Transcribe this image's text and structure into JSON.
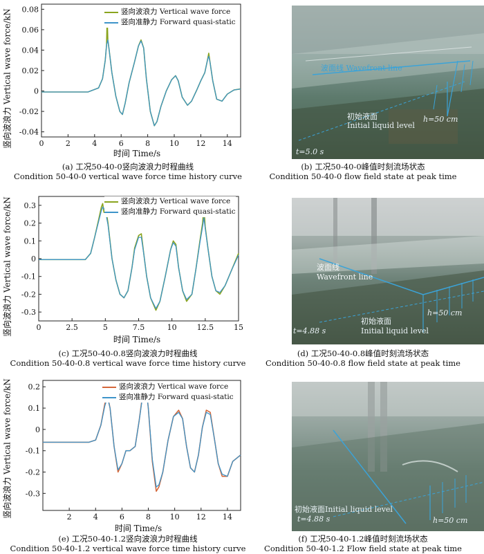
{
  "chart_data": [
    {
      "type": "line",
      "id": "a",
      "xlabel": "时间 Time/s",
      "ylabel": "竖向波浪力 Vertical wave force/kN",
      "xlim": [
        0,
        15
      ],
      "ylim": [
        -0.045,
        0.085
      ],
      "xticks": [
        0,
        2,
        4,
        6,
        8,
        10,
        12,
        14
      ],
      "yticks": [
        -0.04,
        -0.02,
        0,
        0.02,
        0.04,
        0.06,
        0.08
      ],
      "ytick_labels": [
        "-0.04",
        "-0.02",
        "0",
        "0.02",
        "0.04",
        "0.06",
        "0.08"
      ],
      "legend_position": "top-center",
      "series": [
        {
          "name": "竖向波浪力 Vertical wave force",
          "color": "#8aa41e",
          "x": [
            0,
            3.5,
            4.3,
            4.6,
            4.8,
            4.9,
            4.95,
            5.0,
            5.1,
            5.3,
            5.6,
            5.9,
            6.1,
            6.3,
            6.6,
            7.0,
            7.3,
            7.5,
            7.7,
            7.9,
            8.2,
            8.5,
            8.7,
            9.0,
            9.4,
            9.8,
            10.1,
            10.3,
            10.6,
            11.0,
            11.3,
            11.7,
            12.0,
            12.3,
            12.5,
            12.6,
            12.7,
            12.9,
            13.2,
            13.6,
            14.0,
            14.5,
            15.0
          ],
          "y": [
            -0.001,
            -0.001,
            0.003,
            0.012,
            0.03,
            0.045,
            0.072,
            0.05,
            0.04,
            0.018,
            -0.005,
            -0.02,
            -0.023,
            -0.012,
            0.008,
            0.028,
            0.044,
            0.05,
            0.042,
            0.012,
            -0.02,
            -0.034,
            -0.03,
            -0.015,
            0.0,
            0.011,
            0.015,
            0.01,
            -0.006,
            -0.014,
            -0.01,
            0.001,
            0.01,
            0.018,
            0.03,
            0.037,
            0.028,
            0.01,
            -0.008,
            -0.01,
            -0.003,
            0.001,
            0.002
          ]
        },
        {
          "name": "竖向准静力 Forward quasi-static",
          "color": "#3d94c9",
          "x": [
            0,
            3.5,
            4.3,
            4.6,
            4.8,
            4.9,
            5.0,
            5.1,
            5.3,
            5.6,
            5.9,
            6.1,
            6.3,
            6.6,
            7.0,
            7.3,
            7.5,
            7.7,
            7.9,
            8.2,
            8.5,
            8.7,
            9.0,
            9.4,
            9.8,
            10.1,
            10.3,
            10.6,
            11.0,
            11.3,
            11.7,
            12.0,
            12.3,
            12.5,
            12.6,
            12.7,
            12.9,
            13.2,
            13.6,
            14.0,
            14.5,
            15.0
          ],
          "y": [
            -0.001,
            -0.001,
            0.003,
            0.012,
            0.03,
            0.045,
            0.05,
            0.04,
            0.018,
            -0.005,
            -0.02,
            -0.023,
            -0.012,
            0.008,
            0.028,
            0.044,
            0.049,
            0.042,
            0.012,
            -0.02,
            -0.034,
            -0.03,
            -0.015,
            0.0,
            0.011,
            0.015,
            0.01,
            -0.006,
            -0.014,
            -0.01,
            0.001,
            0.01,
            0.018,
            0.03,
            0.034,
            0.028,
            0.01,
            -0.008,
            -0.01,
            -0.003,
            0.001,
            0.002
          ]
        }
      ]
    },
    {
      "type": "line",
      "id": "c",
      "xlabel": "时间 Time/s",
      "ylabel": "竖向波浪力 Vertical wave force/kN",
      "xlim": [
        0,
        15
      ],
      "ylim": [
        -0.35,
        0.35
      ],
      "xticks": [
        0,
        2.5,
        5,
        7.5,
        10,
        12.5,
        15
      ],
      "yticks": [
        -0.3,
        -0.2,
        -0.1,
        0,
        0.1,
        0.2,
        0.3
      ],
      "ytick_labels": [
        "-0.3",
        "-0.2",
        "-0.1",
        "0",
        "0.1",
        "0.2",
        "0.3"
      ],
      "legend_position": "top-center",
      "series": [
        {
          "name": "竖向波浪力 Vertical wave force",
          "color": "#8aa41e",
          "x": [
            0,
            3.5,
            3.9,
            4.2,
            4.5,
            4.7,
            4.8,
            4.9,
            5.0,
            5.2,
            5.5,
            5.8,
            6.1,
            6.4,
            6.7,
            7.0,
            7.2,
            7.5,
            7.7,
            7.9,
            8.1,
            8.4,
            8.8,
            9.1,
            9.5,
            9.9,
            10.1,
            10.3,
            10.5,
            10.8,
            11.1,
            11.5,
            11.8,
            12.1,
            12.3,
            12.4,
            12.5,
            12.7,
            13.0,
            13.3,
            13.6,
            14.0,
            14.5,
            15.0
          ],
          "y": [
            -0.005,
            -0.005,
            0.03,
            0.12,
            0.22,
            0.29,
            0.31,
            0.26,
            0.3,
            0.2,
            0.0,
            -0.12,
            -0.2,
            -0.22,
            -0.18,
            -0.05,
            0.06,
            0.13,
            0.14,
            0.02,
            -0.1,
            -0.22,
            -0.29,
            -0.24,
            -0.1,
            0.05,
            0.1,
            0.08,
            -0.05,
            -0.18,
            -0.24,
            -0.2,
            -0.06,
            0.1,
            0.2,
            0.29,
            0.18,
            0.06,
            -0.1,
            -0.18,
            -0.2,
            -0.15,
            -0.06,
            0.03
          ]
        },
        {
          "name": "竖向准静力 Forward quasi-static",
          "color": "#3d94c9",
          "x": [
            0,
            3.5,
            3.9,
            4.2,
            4.5,
            4.7,
            4.8,
            5.0,
            5.2,
            5.5,
            5.8,
            6.1,
            6.4,
            6.7,
            7.0,
            7.2,
            7.5,
            7.7,
            7.9,
            8.1,
            8.4,
            8.8,
            9.1,
            9.5,
            9.9,
            10.1,
            10.3,
            10.5,
            10.8,
            11.1,
            11.5,
            11.8,
            12.1,
            12.3,
            12.4,
            12.5,
            12.7,
            13.0,
            13.3,
            13.6,
            14.0,
            14.5,
            15.0
          ],
          "y": [
            -0.005,
            -0.005,
            0.03,
            0.12,
            0.21,
            0.27,
            0.29,
            0.27,
            0.19,
            0.0,
            -0.12,
            -0.2,
            -0.22,
            -0.18,
            -0.05,
            0.05,
            0.12,
            0.12,
            0.02,
            -0.1,
            -0.22,
            -0.28,
            -0.24,
            -0.1,
            0.05,
            0.09,
            0.07,
            -0.05,
            -0.18,
            -0.23,
            -0.2,
            -0.06,
            0.09,
            0.18,
            0.23,
            0.17,
            0.06,
            -0.1,
            -0.18,
            -0.19,
            -0.15,
            -0.06,
            0.02
          ]
        }
      ]
    },
    {
      "type": "line",
      "id": "e",
      "xlabel": "时间 Time/s",
      "ylabel": "竖向波浪力 Vertical wave force/kN",
      "xlim": [
        0,
        15
      ],
      "ylim": [
        -0.38,
        0.23
      ],
      "xticks": [
        2,
        4,
        6,
        8,
        10,
        12,
        14
      ],
      "yticks": [
        -0.3,
        -0.2,
        -0.1,
        0,
        0.1,
        0.2
      ],
      "ytick_labels": [
        "-0.3",
        "-0.2",
        "-0.1",
        "0",
        "0.1",
        "0.2"
      ],
      "legend_position": "top-center",
      "series": [
        {
          "name": "竖向波浪力 Vertical wave force",
          "color": "#d4673a",
          "x": [
            0,
            3.5,
            4.0,
            4.4,
            4.7,
            4.9,
            5.1,
            5.4,
            5.7,
            6.0,
            6.3,
            6.6,
            7.0,
            7.3,
            7.6,
            7.8,
            8.0,
            8.3,
            8.6,
            8.8,
            9.1,
            9.5,
            9.9,
            10.3,
            10.6,
            10.9,
            11.2,
            11.5,
            11.8,
            12.1,
            12.4,
            12.7,
            13.0,
            13.3,
            13.6,
            14.0,
            14.4,
            15.0
          ],
          "y": [
            -0.06,
            -0.06,
            -0.05,
            0.02,
            0.12,
            0.16,
            0.1,
            -0.08,
            -0.2,
            -0.16,
            -0.1,
            -0.1,
            -0.08,
            0.04,
            0.18,
            0.22,
            0.1,
            -0.15,
            -0.29,
            -0.27,
            -0.2,
            -0.05,
            0.06,
            0.09,
            0.05,
            -0.08,
            -0.18,
            -0.2,
            -0.12,
            0.01,
            0.09,
            0.08,
            -0.04,
            -0.16,
            -0.22,
            -0.22,
            -0.15,
            -0.12
          ]
        },
        {
          "name": "竖向准静力 Forward quasi-static",
          "color": "#3d94c9",
          "x": [
            0,
            3.5,
            4.0,
            4.4,
            4.7,
            4.9,
            5.1,
            5.4,
            5.7,
            6.0,
            6.3,
            6.6,
            7.0,
            7.3,
            7.6,
            7.8,
            8.0,
            8.3,
            8.6,
            8.8,
            9.1,
            9.5,
            9.9,
            10.3,
            10.6,
            10.9,
            11.2,
            11.5,
            11.8,
            12.1,
            12.4,
            12.7,
            13.0,
            13.3,
            13.6,
            14.0,
            14.4,
            15.0
          ],
          "y": [
            -0.06,
            -0.06,
            -0.05,
            0.02,
            0.11,
            0.15,
            0.1,
            -0.08,
            -0.19,
            -0.16,
            -0.1,
            -0.1,
            -0.08,
            0.04,
            0.17,
            0.21,
            0.1,
            -0.14,
            -0.27,
            -0.26,
            -0.2,
            -0.05,
            0.06,
            0.08,
            0.05,
            -0.08,
            -0.18,
            -0.2,
            -0.12,
            0.01,
            0.08,
            0.07,
            -0.04,
            -0.16,
            -0.21,
            -0.22,
            -0.15,
            -0.12
          ]
        }
      ]
    }
  ],
  "captions": {
    "a_cn": "(a) 工况50-40-0竖向波浪力时程曲线",
    "a_en": "Condition 50-40-0 vertical wave force time history curve",
    "b_cn": "(b) 工况50-40-0峰值时刻流场状态",
    "b_en": "Condition 50-40-0 flow field state at peak time",
    "c_cn": "(c) 工况50-40-0.8竖向波浪力时程曲线",
    "c_en": "Condition 50-40-0.8 vertical wave force time history curve",
    "d_cn": "(d) 工况50-40-0.8峰值时刻流场状态",
    "d_en": "Condition 50-40-0.8 flow field state at peak time",
    "e_cn": "(e) 工况50-40-1.2竖向波浪力时程曲线",
    "e_en": "Condition 50-40-1.2 vertical wave force time history curve",
    "f_cn": "(f) 工况50-40-1.2峰值时刻流场状态",
    "f_en": "Condition 50-40-1.2 Flow field state at peak time"
  },
  "photos": {
    "b": {
      "wavefront": "波面线 Wavefront line",
      "liquid_cn": "初始液面",
      "liquid_en": "Initial liquid level",
      "h": "h=50 cm",
      "t": "t=5.0 s"
    },
    "d": {
      "wavefront_cn": "波面线",
      "wavefront_en": "Wavefront line",
      "liquid_cn": "初始液面",
      "liquid_en": "Initial liquid level",
      "h": "h=50 cm",
      "t": "t=4.88 s"
    },
    "f": {
      "liquid": "初始液面Initial liquid level",
      "h": "h=50 cm",
      "t": "t=4.88 s"
    }
  },
  "colors": {
    "annotation": "#3ba3d8",
    "axis": "#222222"
  }
}
